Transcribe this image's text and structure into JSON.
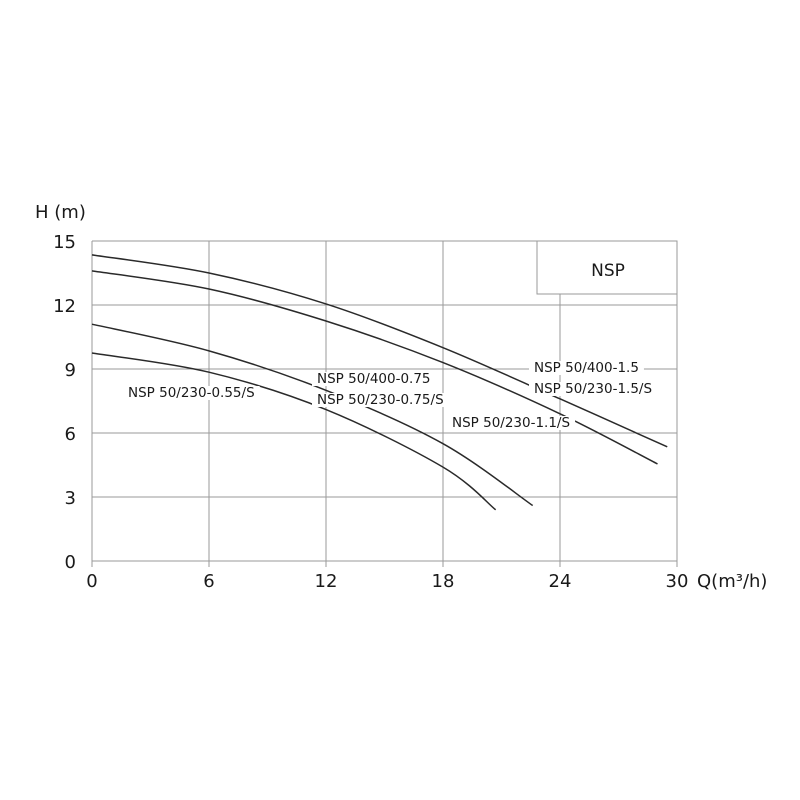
{
  "chart_data": {
    "type": "line",
    "title": "NSP",
    "xlabel": "Q(m³/h)",
    "ylabel": "H (m)",
    "xlim": [
      0,
      30
    ],
    "ylim": [
      0,
      15
    ],
    "xticks": [
      0,
      6,
      12,
      18,
      24,
      30
    ],
    "yticks": [
      0,
      3,
      6,
      9,
      12,
      15
    ],
    "grid": true,
    "series": [
      {
        "name": "NSP 50/400-1.5",
        "points": [
          [
            0,
            14.35
          ],
          [
            6,
            13.5
          ],
          [
            12,
            12.05
          ],
          [
            18,
            10.0
          ],
          [
            24,
            7.6
          ],
          [
            29.5,
            5.35
          ]
        ]
      },
      {
        "name": "NSP 50/230-1.5/S",
        "points": [
          [
            0,
            13.6
          ],
          [
            6,
            12.75
          ],
          [
            12,
            11.25
          ],
          [
            18,
            9.3
          ],
          [
            24,
            6.9
          ],
          [
            29,
            4.55
          ]
        ]
      },
      {
        "name": "NSP 50/400-0.75 / NSP 50/230-0.75/S",
        "points": [
          [
            0,
            11.1
          ],
          [
            6,
            9.85
          ],
          [
            12,
            8.0
          ],
          [
            18,
            5.5
          ],
          [
            22.6,
            2.6
          ]
        ]
      },
      {
        "name": "NSP 50/230-0.55/S",
        "points": [
          [
            0,
            9.75
          ],
          [
            6,
            8.85
          ],
          [
            12,
            7.1
          ],
          [
            18,
            4.4
          ],
          [
            20.7,
            2.4
          ]
        ]
      }
    ],
    "annotations": [
      {
        "text": "NSP 50/230-0.55/S"
      },
      {
        "text": "NSP 50/400-0.75"
      },
      {
        "text": "NSP 50/230-0.75/S"
      },
      {
        "text": "NSP 50/400-1.5"
      },
      {
        "text": "NSP 50/230-1.5/S"
      },
      {
        "text": "NSP 50/230-1.1/S"
      }
    ],
    "colors": {
      "curve": "#2a2a2a",
      "grid": "#9a9a9a"
    }
  }
}
